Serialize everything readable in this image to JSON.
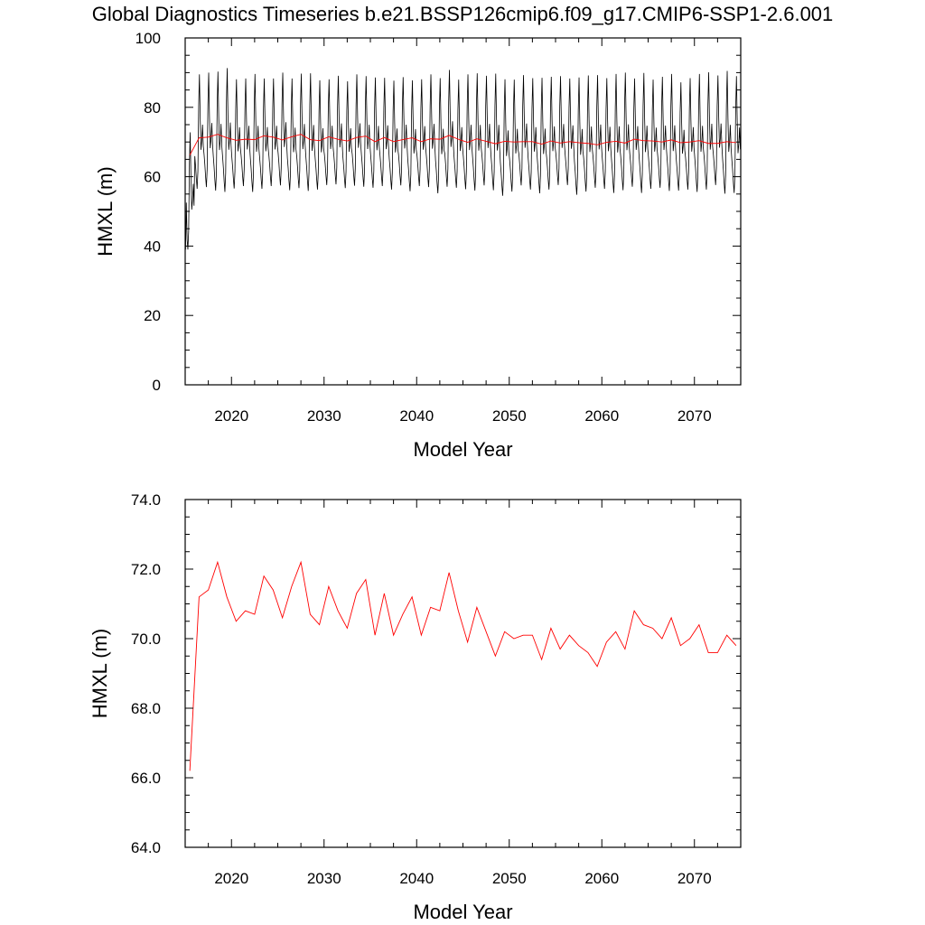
{
  "figure": {
    "title": "Global Diagnostics Timeseries b.e21.BSSP126cmip6.f09_g17.CMIP6-SSP1-2.6.001"
  },
  "colors": {
    "monthly": "#000000",
    "annual": "#ff0000"
  },
  "chart_data": [
    {
      "type": "line",
      "ylabel": "HMXL (m)",
      "xlabel": "Model Year",
      "xlim": [
        2015.0,
        2075.0
      ],
      "ylim": [
        0,
        100
      ],
      "yticks": [
        0,
        20,
        40,
        60,
        80,
        100
      ],
      "ytick_labels": [
        "0",
        "20",
        "40",
        "60",
        "80",
        "100"
      ],
      "xticks": [
        2020,
        2030,
        2040,
        2050,
        2060,
        2070
      ],
      "xtick_labels": [
        "2020",
        "2030",
        "2040",
        "2050",
        "2060",
        "2070"
      ],
      "grid": false,
      "series": [
        {
          "style": "monthly",
          "x_start": 2015.04,
          "x_step": 0.0833333,
          "annual_max": [
            72.8,
            89.5,
            90.0,
            90.3,
            91.3,
            88.1,
            88.3,
            89.6,
            88.3,
            88.3,
            90.0,
            88.3,
            89.7,
            89.8,
            87.8,
            88.1,
            89.1,
            87.5,
            89.5,
            89.0,
            88.6,
            88.5,
            87.7,
            88.7,
            87.8,
            88.1,
            89.5,
            88.4,
            90.8,
            88.0,
            89.5,
            89.8,
            89.1,
            89.7,
            88.1,
            88.0,
            89.3,
            88.4,
            88.5,
            88.8,
            89.0,
            88.3,
            88.6,
            89.2,
            89.3,
            88.4,
            89.6,
            90.0,
            88.3,
            89.9,
            88.0,
            88.8,
            89.6,
            87.2,
            88.4,
            89.6,
            90.1,
            89.2,
            90.5,
            89.0
          ],
          "annual_min": [
            39.0,
            56.5,
            57.0,
            56.0,
            55.6,
            56.6,
            57.3,
            55.6,
            56.5,
            57.3,
            57.5,
            56.1,
            56.7,
            55.9,
            56.3,
            57.6,
            57.8,
            56.7,
            57.4,
            57.1,
            56.8,
            57.3,
            56.3,
            57.5,
            55.8,
            57.3,
            57.0,
            55.2,
            57.1,
            56.8,
            56.4,
            56.0,
            57.5,
            56.1,
            54.5,
            55.7,
            57.5,
            56.3,
            55.2,
            56.3,
            57.6,
            57.6,
            54.8,
            55.7,
            56.8,
            56.5,
            55.3,
            56.1,
            57.1,
            55.3,
            56.5,
            56.8,
            55.9,
            56.0,
            56.3,
            55.6,
            56.3,
            57.6,
            55.1,
            55.3
          ]
        },
        {
          "style": "annual",
          "x": [
            2015.5,
            2016.5,
            2017.5,
            2018.5,
            2019.5,
            2020.5,
            2021.5,
            2022.5,
            2023.5,
            2024.5,
            2025.5,
            2026.5,
            2027.5,
            2028.5,
            2029.5,
            2030.5,
            2031.5,
            2032.5,
            2033.5,
            2034.5,
            2035.5,
            2036.5,
            2037.5,
            2038.5,
            2039.5,
            2040.5,
            2041.5,
            2042.5,
            2043.5,
            2044.5,
            2045.5,
            2046.5,
            2047.5,
            2048.5,
            2049.5,
            2050.5,
            2051.5,
            2052.5,
            2053.5,
            2054.5,
            2055.5,
            2056.5,
            2057.5,
            2058.5,
            2059.5,
            2060.5,
            2061.5,
            2062.5,
            2063.5,
            2064.5,
            2065.5,
            2066.5,
            2067.5,
            2068.5,
            2069.5,
            2070.5,
            2071.5,
            2072.5,
            2073.5,
            2074.5
          ],
          "y": [
            66.2,
            71.2,
            71.4,
            72.2,
            71.2,
            70.5,
            70.8,
            70.7,
            71.8,
            71.4,
            70.6,
            71.5,
            72.2,
            70.7,
            70.4,
            71.5,
            70.8,
            70.3,
            71.3,
            71.7,
            70.1,
            71.3,
            70.1,
            70.7,
            71.2,
            70.1,
            70.9,
            70.8,
            71.9,
            70.8,
            69.9,
            70.9,
            70.2,
            69.5,
            70.2,
            70.0,
            70.1,
            70.1,
            69.4,
            70.3,
            69.7,
            70.1,
            69.8,
            69.6,
            69.2,
            69.9,
            70.2,
            69.7,
            70.8,
            70.4,
            70.3,
            70.0,
            70.6,
            69.8,
            70.0,
            70.4,
            69.6,
            69.6,
            70.1,
            69.8
          ]
        }
      ]
    },
    {
      "type": "line",
      "ylabel": "HMXL (m)",
      "xlabel": "Model Year",
      "xlim": [
        2015.0,
        2075.0
      ],
      "ylim": [
        64.0,
        74.0
      ],
      "yticks": [
        64,
        66,
        68,
        70,
        72,
        74
      ],
      "ytick_labels": [
        "64.0",
        "66.0",
        "68.0",
        "70.0",
        "72.0",
        "74.0"
      ],
      "xticks": [
        2020,
        2030,
        2040,
        2050,
        2060,
        2070
      ],
      "xtick_labels": [
        "2020",
        "2030",
        "2040",
        "2050",
        "2060",
        "2070"
      ],
      "grid": false,
      "series": [
        {
          "style": "annual",
          "x": [
            2015.5,
            2016.5,
            2017.5,
            2018.5,
            2019.5,
            2020.5,
            2021.5,
            2022.5,
            2023.5,
            2024.5,
            2025.5,
            2026.5,
            2027.5,
            2028.5,
            2029.5,
            2030.5,
            2031.5,
            2032.5,
            2033.5,
            2034.5,
            2035.5,
            2036.5,
            2037.5,
            2038.5,
            2039.5,
            2040.5,
            2041.5,
            2042.5,
            2043.5,
            2044.5,
            2045.5,
            2046.5,
            2047.5,
            2048.5,
            2049.5,
            2050.5,
            2051.5,
            2052.5,
            2053.5,
            2054.5,
            2055.5,
            2056.5,
            2057.5,
            2058.5,
            2059.5,
            2060.5,
            2061.5,
            2062.5,
            2063.5,
            2064.5,
            2065.5,
            2066.5,
            2067.5,
            2068.5,
            2069.5,
            2070.5,
            2071.5,
            2072.5,
            2073.5,
            2074.5
          ],
          "y": [
            66.2,
            71.2,
            71.4,
            72.2,
            71.2,
            70.5,
            70.8,
            70.7,
            71.8,
            71.4,
            70.6,
            71.5,
            72.2,
            70.7,
            70.4,
            71.5,
            70.8,
            70.3,
            71.3,
            71.7,
            70.1,
            71.3,
            70.1,
            70.7,
            71.2,
            70.1,
            70.9,
            70.8,
            71.9,
            70.8,
            69.9,
            70.9,
            70.2,
            69.5,
            70.2,
            70.0,
            70.1,
            70.1,
            69.4,
            70.3,
            69.7,
            70.1,
            69.8,
            69.6,
            69.2,
            69.9,
            70.2,
            69.7,
            70.8,
            70.4,
            70.3,
            70.0,
            70.6,
            69.8,
            70.0,
            70.4,
            69.6,
            69.6,
            70.1,
            69.8
          ]
        }
      ]
    }
  ]
}
